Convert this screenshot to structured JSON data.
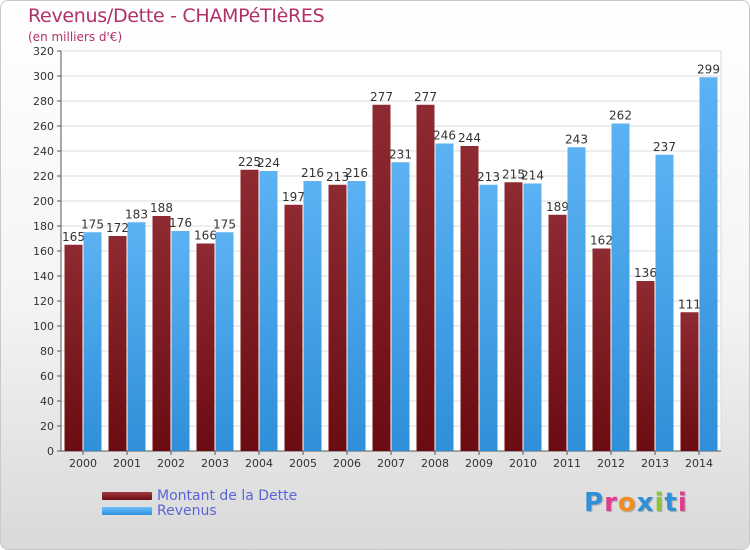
{
  "title": "Revenus/Dette - CHAMPéTIèRES",
  "subtitle": "(en milliers d'€)",
  "legend": {
    "dette_label": "Montant de la Dette",
    "revenus_label": "Revenus"
  },
  "logo": {
    "letters": [
      "P",
      "r",
      "o",
      "x",
      "i",
      "t",
      "i"
    ],
    "colors": [
      "#2f8fd8",
      "#e23c8f",
      "#f28c1e",
      "#2f8fd8",
      "#8ac43f",
      "#2f8fd8",
      "#e23c8f"
    ]
  },
  "colors": {
    "dette": "#6b0c12",
    "revenus": "#2f8fd8",
    "title": "#b0306a",
    "legend_text": "#5a64d6"
  },
  "chart_data": {
    "type": "bar",
    "categories": [
      "2000",
      "2001",
      "2002",
      "2003",
      "2004",
      "2005",
      "2006",
      "2007",
      "2008",
      "2009",
      "2010",
      "2011",
      "2012",
      "2013",
      "2014"
    ],
    "series": [
      {
        "name": "Montant de la Dette",
        "values": [
          165,
          172,
          188,
          166,
          225,
          197,
          213,
          277,
          277,
          244,
          215,
          189,
          162,
          136,
          111
        ]
      },
      {
        "name": "Revenus",
        "values": [
          175,
          183,
          176,
          175,
          224,
          216,
          216,
          231,
          246,
          213,
          214,
          243,
          262,
          237,
          299
        ]
      }
    ],
    "ylim": [
      0,
      320
    ],
    "ytick_step": 20,
    "grid": true,
    "legend_position": "bottom-left"
  }
}
